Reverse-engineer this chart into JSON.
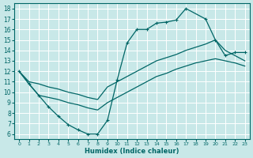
{
  "xlabel": "Humidex (Indice chaleur)",
  "bg_color": "#c8e8e8",
  "grid_color": "#ffffff",
  "line_color": "#006666",
  "xlim": [
    -0.5,
    23.5
  ],
  "ylim": [
    5.5,
    18.5
  ],
  "xticks": [
    0,
    1,
    2,
    3,
    4,
    5,
    6,
    7,
    8,
    9,
    10,
    11,
    12,
    13,
    14,
    15,
    16,
    17,
    18,
    19,
    20,
    21,
    22,
    23
  ],
  "yticks": [
    6,
    7,
    8,
    9,
    10,
    11,
    12,
    13,
    14,
    15,
    16,
    17,
    18
  ],
  "line_jagged_x": [
    0,
    1,
    2,
    3,
    4,
    5,
    6,
    7,
    8,
    9,
    10,
    11,
    12,
    13,
    14,
    15,
    16,
    17,
    19,
    20,
    21,
    22,
    23
  ],
  "line_jagged_y": [
    12,
    10.8,
    9.7,
    8.6,
    7.7,
    6.9,
    6.4,
    6.0,
    6.0,
    7.3,
    11.2,
    14.7,
    16.0,
    16.0,
    16.6,
    16.7,
    16.9,
    18.0,
    17.0,
    15.0,
    13.5,
    13.8,
    13.8
  ],
  "line_upper_diag_x": [
    0,
    1,
    2,
    3,
    4,
    5,
    6,
    7,
    8,
    9,
    10,
    11,
    12,
    13,
    14,
    15,
    16,
    17,
    18,
    19,
    20,
    21,
    22,
    23
  ],
  "line_upper_diag_y": [
    12.0,
    11.0,
    10.8,
    10.5,
    10.3,
    10.0,
    9.8,
    9.5,
    9.3,
    10.5,
    11.0,
    11.5,
    12.0,
    12.5,
    13.0,
    13.3,
    13.6,
    14.0,
    14.3,
    14.6,
    15.0,
    14.0,
    13.5,
    13.0
  ],
  "line_lower_diag_x": [
    0,
    1,
    2,
    3,
    4,
    5,
    6,
    7,
    8,
    9,
    10,
    11,
    12,
    13,
    14,
    15,
    16,
    17,
    18,
    19,
    20,
    21,
    22,
    23
  ],
  "line_lower_diag_y": [
    12.0,
    10.8,
    9.7,
    9.5,
    9.3,
    9.0,
    8.8,
    8.5,
    8.3,
    9.0,
    9.5,
    10.0,
    10.5,
    11.0,
    11.5,
    11.8,
    12.2,
    12.5,
    12.8,
    13.0,
    13.2,
    13.0,
    12.8,
    12.5
  ]
}
